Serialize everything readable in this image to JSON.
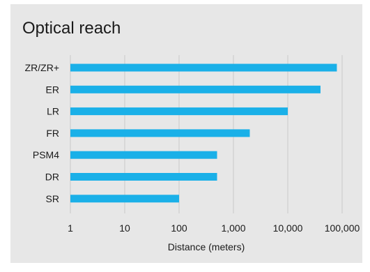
{
  "chart_data": {
    "type": "bar",
    "orientation": "horizontal",
    "title": "Optical reach",
    "xlabel": "Distance (meters)",
    "ylabel": "",
    "x_scale": "log",
    "xlim": [
      1,
      100000
    ],
    "x_ticks": [
      "1",
      "10",
      "100",
      "1,000",
      "10,000",
      "100,000"
    ],
    "grid": "vertical",
    "legend": "none",
    "bar_color": "#1ab0e8",
    "categories": [
      "ZR/ZR+",
      "ER",
      "LR",
      "FR",
      "PSM4",
      "DR",
      "SR"
    ],
    "values": [
      80000,
      40000,
      10000,
      2000,
      500,
      500,
      100
    ]
  }
}
